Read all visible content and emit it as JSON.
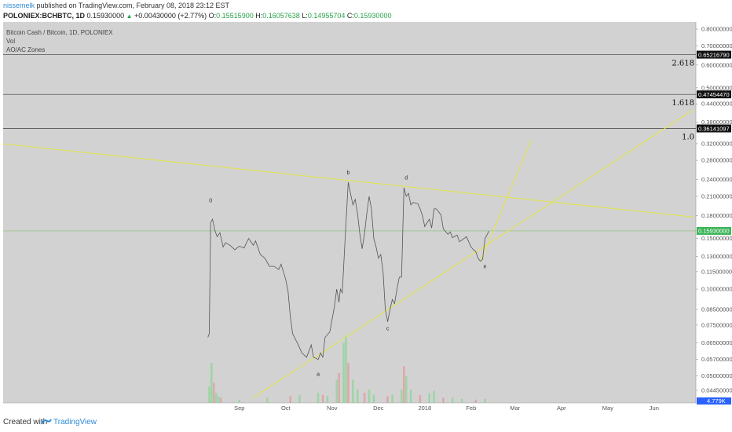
{
  "header": {
    "author": "nissemelk",
    "published": "published on TradingView.com, February 08, 2018 23:12 EST",
    "symbol": "POLONIEX:BCHBTC, 1D",
    "last": "0.15930000",
    "change_arrow": "▲",
    "change": "+0.00430000 (+2.77%)",
    "o_label": "O:",
    "o": "0.15515900",
    "h_label": "H:",
    "h": "0.16057638",
    "l_label": "L:",
    "l": "0.14955704",
    "c_label": "C:",
    "c": "0.15930000"
  },
  "panes": {
    "title": "Bitcoin Cash / Bitcoin, 1D, POLONIEX",
    "vol": "Vol",
    "indicator": "AO/AC Zones"
  },
  "footer": {
    "created": "Created with",
    "brand": "TradingView"
  },
  "colors": {
    "background": "#d2d2d2",
    "price_line": "#555555",
    "trendline": "#e6e64a",
    "fib_line": "#3a3a3a",
    "current_price_line": "#7fc36e",
    "volume_green": "#8fd49a",
    "volume_red": "#e49a9a",
    "tag_dark": "#111111",
    "tag_green": "#3db55a",
    "tag_blue": "#2962ff"
  },
  "chart_data": {
    "type": "line",
    "title": "Bitcoin Cash / Bitcoin, 1D, POLONIEX",
    "y_ticks": [
      "0.80000000",
      "0.70000000",
      "0.60000000",
      "0.50000000",
      "0.44000000",
      "0.38000000",
      "0.32000000",
      "0.28000000",
      "0.24000000",
      "0.21000000",
      "0.18000000",
      "0.15000000",
      "0.13000000",
      "0.11500000",
      "0.10000000",
      "0.08500000",
      "0.07500000",
      "0.06500000",
      "0.05700000",
      "0.05000000",
      "0.04450000"
    ],
    "x_ticks": [
      {
        "label": "Sep",
        "t": 0.2
      },
      {
        "label": "Oct",
        "t": 1.2
      },
      {
        "label": "Nov",
        "t": 2.2
      },
      {
        "label": "Dec",
        "t": 3.2
      },
      {
        "label": "2018",
        "t": 4.2
      },
      {
        "label": "Feb",
        "t": 5.2
      },
      {
        "label": "Mar",
        "t": 6.15
      },
      {
        "label": "Apr",
        "t": 7.15
      },
      {
        "label": "May",
        "t": 8.15
      },
      {
        "label": "Jun",
        "t": 9.15
      }
    ],
    "price_series": [
      [
        -0.48,
        0.068
      ],
      [
        -0.45,
        0.07
      ],
      [
        -0.42,
        0.17
      ],
      [
        -0.38,
        0.175
      ],
      [
        -0.33,
        0.16
      ],
      [
        -0.28,
        0.152
      ],
      [
        -0.22,
        0.157
      ],
      [
        -0.15,
        0.14
      ],
      [
        -0.1,
        0.145
      ],
      [
        0.0,
        0.142
      ],
      [
        0.1,
        0.137
      ],
      [
        0.2,
        0.141
      ],
      [
        0.3,
        0.139
      ],
      [
        0.4,
        0.15
      ],
      [
        0.5,
        0.142
      ],
      [
        0.55,
        0.147
      ],
      [
        0.65,
        0.132
      ],
      [
        0.75,
        0.128
      ],
      [
        0.85,
        0.12
      ],
      [
        0.95,
        0.12
      ],
      [
        1.05,
        0.117
      ],
      [
        1.1,
        0.122
      ],
      [
        1.2,
        0.108
      ],
      [
        1.25,
        0.098
      ],
      [
        1.3,
        0.08
      ],
      [
        1.35,
        0.07
      ],
      [
        1.45,
        0.065
      ],
      [
        1.55,
        0.06
      ],
      [
        1.65,
        0.058
      ],
      [
        1.75,
        0.064
      ],
      [
        1.8,
        0.058
      ],
      [
        1.9,
        0.057
      ],
      [
        1.95,
        0.06
      ],
      [
        2.0,
        0.058
      ],
      [
        2.05,
        0.068
      ],
      [
        2.15,
        0.071
      ],
      [
        2.25,
        0.087
      ],
      [
        2.3,
        0.1
      ],
      [
        2.35,
        0.09
      ],
      [
        2.38,
        0.1
      ],
      [
        2.42,
        0.097
      ],
      [
        2.5,
        0.17
      ],
      [
        2.55,
        0.235
      ],
      [
        2.6,
        0.214
      ],
      [
        2.65,
        0.196
      ],
      [
        2.7,
        0.205
      ],
      [
        2.75,
        0.182
      ],
      [
        2.8,
        0.155
      ],
      [
        2.85,
        0.138
      ],
      [
        2.9,
        0.156
      ],
      [
        2.95,
        0.184
      ],
      [
        3.0,
        0.21
      ],
      [
        3.05,
        0.19
      ],
      [
        3.1,
        0.15
      ],
      [
        3.15,
        0.14
      ],
      [
        3.2,
        0.128
      ],
      [
        3.25,
        0.132
      ],
      [
        3.3,
        0.115
      ],
      [
        3.35,
        0.085
      ],
      [
        3.4,
        0.077
      ],
      [
        3.45,
        0.085
      ],
      [
        3.5,
        0.092
      ],
      [
        3.55,
        0.089
      ],
      [
        3.6,
        0.1
      ],
      [
        3.65,
        0.11
      ],
      [
        3.7,
        0.11
      ],
      [
        3.75,
        0.225
      ],
      [
        3.8,
        0.21
      ],
      [
        3.85,
        0.215
      ],
      [
        3.9,
        0.196
      ],
      [
        3.95,
        0.2
      ],
      [
        4.05,
        0.198
      ],
      [
        4.1,
        0.19
      ],
      [
        4.15,
        0.18
      ],
      [
        4.2,
        0.165
      ],
      [
        4.3,
        0.175
      ],
      [
        4.35,
        0.163
      ],
      [
        4.4,
        0.19
      ],
      [
        4.45,
        0.19
      ],
      [
        4.55,
        0.181
      ],
      [
        4.6,
        0.162
      ],
      [
        4.7,
        0.155
      ],
      [
        4.75,
        0.158
      ],
      [
        4.8,
        0.151
      ],
      [
        4.9,
        0.154
      ],
      [
        4.95,
        0.146
      ],
      [
        5.0,
        0.148
      ],
      [
        5.1,
        0.152
      ],
      [
        5.2,
        0.14
      ],
      [
        5.25,
        0.137
      ],
      [
        5.3,
        0.135
      ],
      [
        5.35,
        0.128
      ],
      [
        5.4,
        0.125
      ],
      [
        5.45,
        0.127
      ],
      [
        5.5,
        0.15
      ],
      [
        5.55,
        0.155
      ],
      [
        5.58,
        0.159
      ]
    ],
    "fib_levels": [
      {
        "ratio": "2.618",
        "price": "0.65216790",
        "value": 0.652
      },
      {
        "ratio": "1.618",
        "price": "0.47454470",
        "value": 0.4745
      },
      {
        "ratio": "1.0",
        "price": "0.36141097",
        "value": 0.3614
      }
    ],
    "current_price": {
      "label": "0.15930000",
      "value": 0.1593
    },
    "volume_tag": "4.779K",
    "wave_labels": [
      {
        "text": "0",
        "t": -0.42,
        "value": 0.2
      },
      {
        "text": "a",
        "t": 1.9,
        "value": 0.05
      },
      {
        "text": "b",
        "t": 2.55,
        "value": 0.25
      },
      {
        "text": "c",
        "t": 3.4,
        "value": 0.072
      },
      {
        "text": "d",
        "t": 3.8,
        "value": 0.24
      },
      {
        "text": "e",
        "t": 5.5,
        "value": 0.118
      }
    ],
    "trendlines": [
      {
        "from": [
          -5.1,
          0.322
        ],
        "to": [
          10.0,
          0.178
        ]
      },
      {
        "from": [
          0.5,
          0.042
        ],
        "to": [
          10.0,
          0.42
        ]
      },
      {
        "from": [
          5.4,
          0.125
        ],
        "to": [
          6.5,
          0.33
        ]
      }
    ],
    "volume_series": [
      [
        -0.45,
        0.25
      ],
      [
        -0.4,
        0.6
      ],
      [
        -0.35,
        0.3
      ],
      [
        -0.3,
        0.15
      ],
      [
        -0.25,
        0.1
      ],
      [
        -0.2,
        0.08
      ],
      [
        0.2,
        0.05
      ],
      [
        0.8,
        0.08
      ],
      [
        1.3,
        0.1
      ],
      [
        1.5,
        0.12
      ],
      [
        1.9,
        0.15
      ],
      [
        2.0,
        0.12
      ],
      [
        2.1,
        0.1
      ],
      [
        2.3,
        0.35
      ],
      [
        2.35,
        0.45
      ],
      [
        2.45,
        0.9
      ],
      [
        2.5,
        1.0
      ],
      [
        2.55,
        0.6
      ],
      [
        2.65,
        0.35
      ],
      [
        2.75,
        0.2
      ],
      [
        2.9,
        0.15
      ],
      [
        3.0,
        0.2
      ],
      [
        3.1,
        0.12
      ],
      [
        3.4,
        0.1
      ],
      [
        3.5,
        0.12
      ],
      [
        3.7,
        0.2
      ],
      [
        3.75,
        0.55
      ],
      [
        3.8,
        0.4
      ],
      [
        3.9,
        0.2
      ],
      [
        4.1,
        0.12
      ],
      [
        4.3,
        0.15
      ],
      [
        4.4,
        0.18
      ],
      [
        4.6,
        0.08
      ],
      [
        4.8,
        0.08
      ],
      [
        5.0,
        0.06
      ],
      [
        5.3,
        0.05
      ],
      [
        5.5,
        0.06
      ]
    ]
  }
}
